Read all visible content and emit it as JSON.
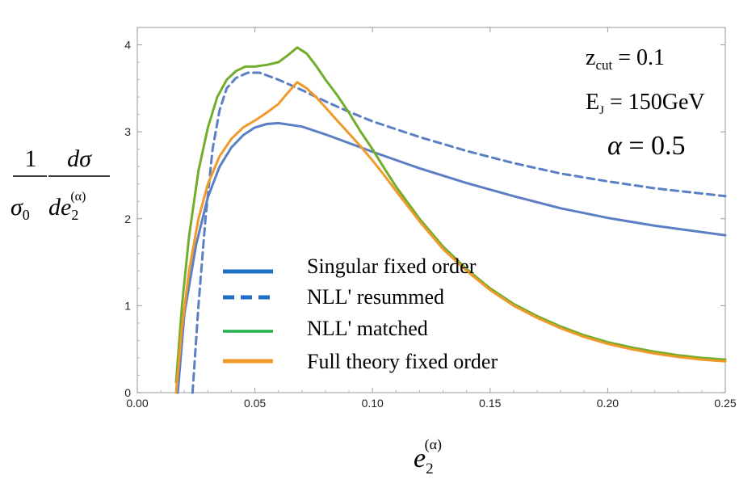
{
  "chart_data": {
    "type": "line",
    "title": "",
    "xlabel": {
      "base": "e",
      "sub": "2",
      "sup": "(α)"
    },
    "ylabel": {
      "frac1_num": "1",
      "frac1_den_base": "σ",
      "frac1_den_sub": "0",
      "frac2_num": "dσ",
      "frac2_den_base": "de",
      "frac2_den_sub": "2",
      "frac2_den_sup": "(α)"
    },
    "xlim": [
      0.0,
      0.25
    ],
    "ylim": [
      0,
      4.2
    ],
    "xticks": [
      0.0,
      0.05,
      0.1,
      0.15,
      0.2,
      0.25
    ],
    "xtick_labels": [
      "0.00",
      "0.05",
      "0.10",
      "0.15",
      "0.20",
      "0.25"
    ],
    "yticks": [
      0,
      1,
      2,
      3,
      4
    ],
    "ytick_labels": [
      "0",
      "1",
      "2",
      "3",
      "4"
    ],
    "annotations": {
      "zcut_base": "z",
      "zcut_sub": "cut",
      "zcut_value": " = 0.1",
      "ej_base": "E",
      "ej_sub": "J",
      "ej_value": " = 150GeV",
      "alpha_symbol": "α",
      "alpha_value": " = 0.5"
    },
    "legend": {
      "placement": "lower-center",
      "entries": [
        "Singular fixed order",
        "NLL' resummed",
        "NLL' matched",
        "Full theory fixed order"
      ]
    },
    "series": [
      {
        "name": "Singular fixed order",
        "color": "#5b7fc4",
        "dash": "solid",
        "points": [
          [
            0.0172,
            0.0
          ],
          [
            0.02,
            0.9
          ],
          [
            0.025,
            1.7
          ],
          [
            0.03,
            2.25
          ],
          [
            0.035,
            2.6
          ],
          [
            0.04,
            2.82
          ],
          [
            0.045,
            2.96
          ],
          [
            0.05,
            3.05
          ],
          [
            0.055,
            3.09
          ],
          [
            0.06,
            3.1
          ],
          [
            0.07,
            3.06
          ],
          [
            0.08,
            2.97
          ],
          [
            0.09,
            2.87
          ],
          [
            0.1,
            2.77
          ],
          [
            0.12,
            2.58
          ],
          [
            0.14,
            2.41
          ],
          [
            0.16,
            2.26
          ],
          [
            0.18,
            2.12
          ],
          [
            0.2,
            2.01
          ],
          [
            0.22,
            1.92
          ],
          [
            0.25,
            1.81
          ]
        ]
      },
      {
        "name": "NLL' resummed",
        "color": "#5b7fc4",
        "dash": "dashed",
        "points": [
          [
            0.0235,
            0.0
          ],
          [
            0.026,
            1.0
          ],
          [
            0.029,
            2.0
          ],
          [
            0.032,
            2.8
          ],
          [
            0.035,
            3.25
          ],
          [
            0.038,
            3.5
          ],
          [
            0.042,
            3.62
          ],
          [
            0.047,
            3.68
          ],
          [
            0.052,
            3.68
          ],
          [
            0.06,
            3.6
          ],
          [
            0.07,
            3.48
          ],
          [
            0.08,
            3.35
          ],
          [
            0.09,
            3.23
          ],
          [
            0.1,
            3.12
          ],
          [
            0.12,
            2.94
          ],
          [
            0.14,
            2.78
          ],
          [
            0.16,
            2.64
          ],
          [
            0.18,
            2.52
          ],
          [
            0.2,
            2.43
          ],
          [
            0.22,
            2.35
          ],
          [
            0.25,
            2.26
          ]
        ]
      },
      {
        "name": "NLL' matched",
        "color": "#72ae2c",
        "dash": "solid",
        "points": [
          [
            0.0165,
            0.12
          ],
          [
            0.019,
            1.0
          ],
          [
            0.022,
            1.8
          ],
          [
            0.026,
            2.55
          ],
          [
            0.03,
            3.05
          ],
          [
            0.034,
            3.4
          ],
          [
            0.038,
            3.6
          ],
          [
            0.042,
            3.7
          ],
          [
            0.046,
            3.75
          ],
          [
            0.05,
            3.75
          ],
          [
            0.055,
            3.77
          ],
          [
            0.06,
            3.8
          ],
          [
            0.064,
            3.88
          ],
          [
            0.068,
            3.97
          ],
          [
            0.072,
            3.9
          ],
          [
            0.076,
            3.76
          ],
          [
            0.08,
            3.6
          ],
          [
            0.085,
            3.42
          ],
          [
            0.09,
            3.22
          ],
          [
            0.095,
            3.0
          ],
          [
            0.1,
            2.8
          ],
          [
            0.105,
            2.58
          ],
          [
            0.11,
            2.37
          ],
          [
            0.12,
            2.0
          ],
          [
            0.13,
            1.68
          ],
          [
            0.14,
            1.42
          ],
          [
            0.15,
            1.2
          ],
          [
            0.16,
            1.02
          ],
          [
            0.17,
            0.88
          ],
          [
            0.18,
            0.76
          ],
          [
            0.19,
            0.66
          ],
          [
            0.2,
            0.58
          ],
          [
            0.21,
            0.52
          ],
          [
            0.22,
            0.47
          ],
          [
            0.23,
            0.43
          ],
          [
            0.24,
            0.4
          ],
          [
            0.25,
            0.38
          ]
        ]
      },
      {
        "name": "Full theory fixed order",
        "color": "#ef9a2a",
        "dash": "solid",
        "points": [
          [
            0.0165,
            0.0
          ],
          [
            0.019,
            0.75
          ],
          [
            0.022,
            1.4
          ],
          [
            0.026,
            2.0
          ],
          [
            0.03,
            2.4
          ],
          [
            0.035,
            2.72
          ],
          [
            0.04,
            2.92
          ],
          [
            0.045,
            3.05
          ],
          [
            0.05,
            3.13
          ],
          [
            0.055,
            3.22
          ],
          [
            0.06,
            3.32
          ],
          [
            0.064,
            3.45
          ],
          [
            0.068,
            3.57
          ],
          [
            0.072,
            3.5
          ],
          [
            0.076,
            3.4
          ],
          [
            0.08,
            3.28
          ],
          [
            0.085,
            3.13
          ],
          [
            0.09,
            2.98
          ],
          [
            0.095,
            2.83
          ],
          [
            0.1,
            2.67
          ],
          [
            0.105,
            2.5
          ],
          [
            0.11,
            2.32
          ],
          [
            0.12,
            1.97
          ],
          [
            0.13,
            1.65
          ],
          [
            0.14,
            1.4
          ],
          [
            0.15,
            1.18
          ],
          [
            0.16,
            1.0
          ],
          [
            0.17,
            0.86
          ],
          [
            0.18,
            0.74
          ],
          [
            0.19,
            0.64
          ],
          [
            0.2,
            0.56
          ],
          [
            0.21,
            0.5
          ],
          [
            0.22,
            0.45
          ],
          [
            0.23,
            0.41
          ],
          [
            0.24,
            0.38
          ],
          [
            0.25,
            0.36
          ]
        ]
      }
    ]
  }
}
